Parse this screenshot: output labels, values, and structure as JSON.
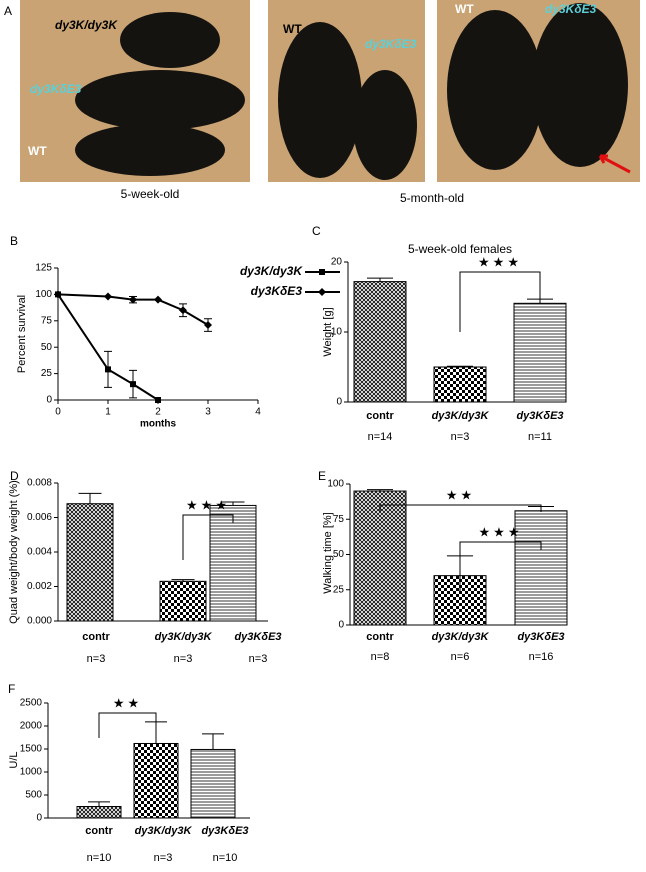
{
  "panel_a": {
    "panel": "A",
    "photos": [
      {
        "labels": [
          "dy3K/dy3K",
          "dy3KδE3",
          "WT"
        ]
      },
      {
        "labels": [
          "WT",
          "dy3KδE3"
        ]
      },
      {
        "labels": [
          "WT",
          "dy3KδE3"
        ]
      }
    ],
    "captions": [
      "5-week-old",
      "5-month-old"
    ]
  },
  "chart_data": [
    {
      "type": "line",
      "panel": "B",
      "x_label": "months",
      "y_label": "Percent survival",
      "xlim": [
        0,
        4
      ],
      "xticks": [
        0,
        1,
        2,
        3,
        4
      ],
      "ylim": [
        0,
        125
      ],
      "yticks": [
        0,
        25,
        50,
        75,
        100,
        125
      ],
      "series": [
        {
          "name": "dy3K/dy3K",
          "color": "#000000",
          "marker": "square",
          "x": [
            0,
            1,
            1.5,
            2
          ],
          "values": [
            100,
            29,
            15,
            0
          ],
          "errors": [
            null,
            17,
            13,
            null
          ]
        },
        {
          "name": "dy3KδE3",
          "color": "#000000",
          "marker": "diamond",
          "x": [
            0,
            1,
            1.5,
            2,
            2.5,
            3
          ],
          "values": [
            100,
            98,
            95,
            95,
            85,
            71
          ],
          "errors": [
            null,
            null,
            3,
            null,
            6,
            6
          ]
        }
      ]
    },
    {
      "type": "bar",
      "panel": "C",
      "title": "5-week-old females",
      "y_label": "Weight [g]",
      "categories": [
        "contr",
        "dy3K/dy3K",
        "dy3KδE3"
      ],
      "values": [
        17.2,
        5,
        14.1
      ],
      "errors": [
        0.5,
        0.1,
        0.6
      ],
      "n": [
        "n=14",
        "n=3",
        "n=11"
      ],
      "ylim": [
        0,
        20
      ],
      "yticks": [
        0,
        10,
        20
      ],
      "annotations": [
        "★★★"
      ]
    },
    {
      "type": "bar",
      "panel": "D",
      "y_label": "Quad weight/body weight (%)",
      "categories": [
        "contr",
        "dy3K/dy3K",
        "dy3KδE3"
      ],
      "values": [
        0.0068,
        0.0023,
        0.0067
      ],
      "errors": [
        0.0006,
        0.0001,
        0.0002
      ],
      "n": [
        "n=3",
        "n=3",
        "n=3"
      ],
      "ylim": [
        0,
        0.008
      ],
      "yticks": [
        {
          "value": 0,
          "label": "0.000"
        },
        {
          "value": 0.002,
          "label": "0.002"
        },
        {
          "value": 0.004,
          "label": "0.004"
        },
        {
          "value": 0.006,
          "label": "0.006"
        },
        {
          "value": 0.008,
          "label": "0.008"
        }
      ],
      "annotations": [
        "★★★"
      ]
    },
    {
      "type": "bar",
      "panel": "E",
      "y_label": "Walking time [%]",
      "categories": [
        "contr",
        "dy3K/dy3K",
        "dy3KδE3"
      ],
      "values": [
        95,
        35,
        81
      ],
      "errors": [
        1,
        14,
        3
      ],
      "n": [
        "n=8",
        "n=6",
        "n=16"
      ],
      "ylim": [
        0,
        100
      ],
      "yticks": [
        0,
        25,
        50,
        75,
        100
      ],
      "annotations": [
        "★★",
        "★★★"
      ]
    },
    {
      "type": "bar",
      "panel": "F",
      "y_label": "U/L",
      "categories": [
        "contr",
        "dy3K/dy3K",
        "dy3KδE3"
      ],
      "values": [
        250,
        1620,
        1490
      ],
      "errors": [
        100,
        470,
        340
      ],
      "n": [
        "n=10",
        "n=3",
        "n=10"
      ],
      "ylim": [
        0,
        2500
      ],
      "yticks": [
        0,
        500,
        1000,
        1500,
        2000,
        2500
      ],
      "annotations": [
        "★★"
      ]
    }
  ]
}
